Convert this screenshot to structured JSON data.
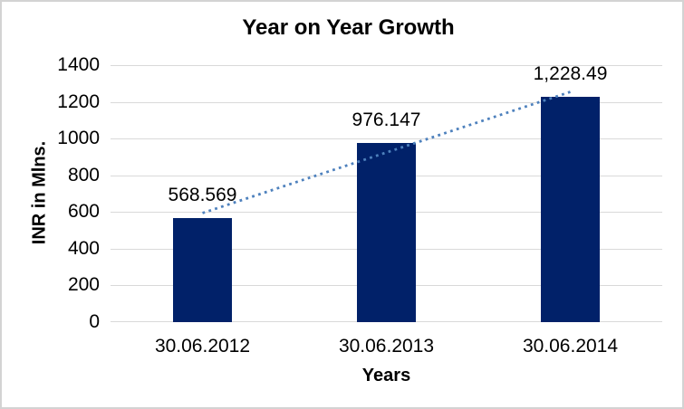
{
  "window": {
    "background": "#FFFFFF",
    "border_color": "#D3D3D3"
  },
  "chart_data": {
    "type": "bar",
    "title": "Year on Year Growth",
    "categories": [
      "30.06.2012",
      "30.06.2013",
      "30.06.2014"
    ],
    "values": [
      568.569,
      976.147,
      1228.49
    ],
    "value_labels": [
      "568.569",
      "976.147",
      "1,228.49"
    ],
    "xlabel": "Years",
    "ylabel": "INR in Mlns.",
    "ylim": [
      0,
      1400
    ],
    "yticks": [
      0,
      200,
      400,
      600,
      800,
      1000,
      1200,
      1400
    ],
    "grid": true,
    "legend": "none",
    "bar_color": "#012169",
    "gridline_color": "#D9D9D9",
    "text_color": "#000000",
    "trendline": {
      "type": "linear",
      "style": "dotted",
      "color": "#4E81BD"
    }
  }
}
